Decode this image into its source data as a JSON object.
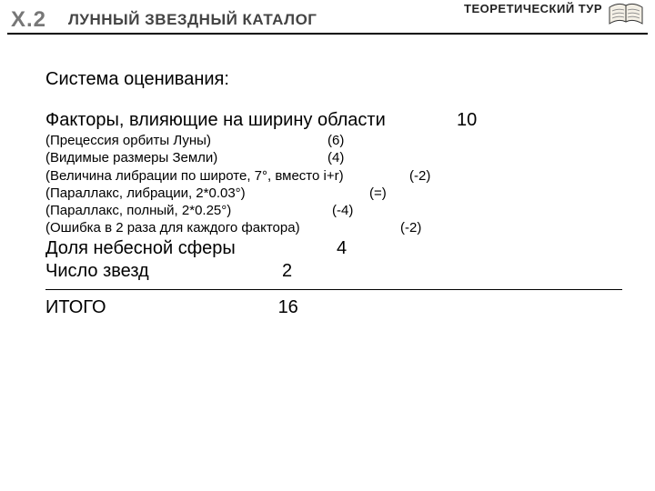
{
  "header": {
    "problem_number": "Х.2",
    "title": "ЛУННЫЙ ЗВЕЗДНЫЙ КАТАЛОГ",
    "tour_label": "ТЕОРЕТИЧЕСКИЙ ТУР"
  },
  "grading_title": "Система оценивания:",
  "rows": [
    {
      "type": "main",
      "label": "Факторы, влияющие на ширину области",
      "score": "10",
      "label_w": 406,
      "score_pad": 46
    },
    {
      "type": "sub",
      "label": "(Прецессия орбиты Луны)",
      "score": "(6)",
      "label_w": 310,
      "score_pad": 0
    },
    {
      "type": "sub",
      "label": "(Видимые размеры Земли)",
      "score": "(4)",
      "label_w": 310,
      "score_pad": 0
    },
    {
      "type": "sub",
      "label": "(Величина либрации по широте, 7°, вместо i+r)",
      "score": "(-2)",
      "label_w": 335,
      "score_pad": 65
    },
    {
      "type": "sub",
      "label": "(Параллакс, либрации, 2*0.03°)",
      "score": "(=)",
      "label_w": 332,
      "score_pad": 24
    },
    {
      "type": "sub",
      "label": "(Параллакс, полный, 2*0.25°)",
      "score": "(-4)",
      "label_w": 315,
      "score_pad": 0
    },
    {
      "type": "sub",
      "label": "(Ошибка в 2 раза для каждого фактора)",
      "score": "(-2)",
      "label_w": 310,
      "score_pad": 80
    },
    {
      "type": "main",
      "label": "Доля небесной сферы",
      "score": "4",
      "label_w": 320,
      "score_pad": 0
    },
    {
      "type": "main",
      "label": "Число звезд",
      "score": "2",
      "label_w": 260,
      "score_pad": 0
    }
  ],
  "total": {
    "label": "ИТОГО",
    "score": "16",
    "label_w": 250
  },
  "colors": {
    "rule": "#000000",
    "muted": "#777777",
    "text": "#000000",
    "header_text": "#444444"
  }
}
